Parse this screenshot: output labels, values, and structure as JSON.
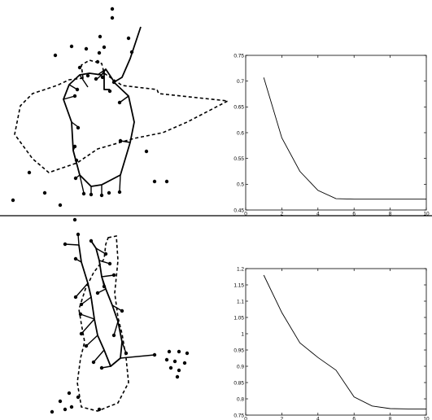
{
  "chart_data": [
    {
      "type": "line",
      "title": "",
      "xlabel": "",
      "ylabel": "",
      "xlim": [
        0,
        10
      ],
      "ylim": [
        0.45,
        0.75
      ],
      "xticks": [
        "0",
        "2",
        "4",
        "6",
        "8",
        "10"
      ],
      "yticks": [
        "0.45",
        "0.5",
        "0.55",
        "0.6",
        "0.65",
        "0.7",
        "0.75"
      ],
      "grid": false,
      "series": [
        {
          "x": [
            1,
            2,
            3,
            4,
            5,
            6,
            7,
            8,
            9,
            10
          ],
          "y": [
            0.707,
            0.59,
            0.525,
            0.488,
            0.472,
            0.471,
            0.471,
            0.471,
            0.471,
            0.471
          ]
        }
      ]
    },
    {
      "type": "line",
      "title": "",
      "xlabel": "",
      "ylabel": "",
      "xlim": [
        0,
        10
      ],
      "ylim": [
        0.75,
        1.2
      ],
      "xticks": [
        "0",
        "2",
        "4",
        "6",
        "8",
        "10"
      ],
      "yticks": [
        "0.75",
        "0.8",
        "0.85",
        "0.9",
        "0.95",
        "1",
        "1.05",
        "1.1",
        "1.15",
        "1.2"
      ],
      "grid": false,
      "series": [
        {
          "x": [
            1,
            2,
            3,
            4,
            5,
            6,
            7,
            8,
            9,
            10
          ],
          "y": [
            1.18,
            1.065,
            0.972,
            0.927,
            0.888,
            0.806,
            0.778,
            0.77,
            0.769,
            0.769
          ]
        }
      ]
    }
  ]
}
